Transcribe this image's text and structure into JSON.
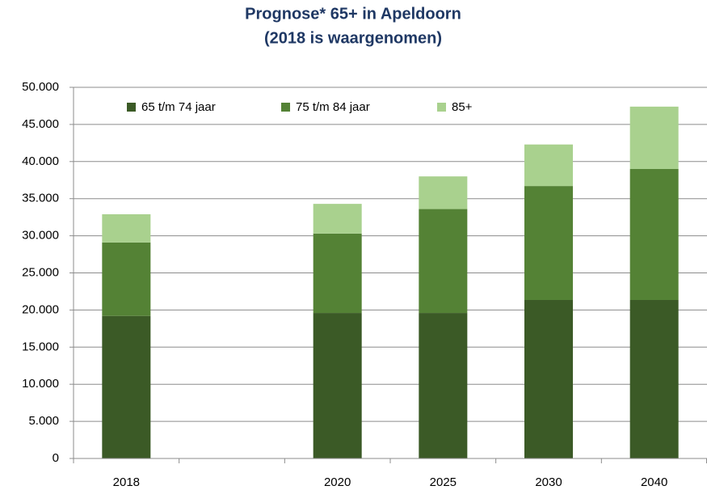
{
  "chart_data": {
    "type": "stacked-bar",
    "title": "Prognose* 65+ in Apeldoorn",
    "subtitle": "(2018 is waargenomen)",
    "categories": [
      "2018",
      null,
      "2020",
      "2025",
      "2030",
      "2040"
    ],
    "series": [
      {
        "name": "65 t/m 74 jaar",
        "color": "#3b5a26",
        "values": [
          19200,
          null,
          19600,
          19600,
          21350,
          21350
        ]
      },
      {
        "name": "75 t/m 84 jaar",
        "color": "#548235",
        "values": [
          9900,
          null,
          10700,
          14000,
          15350,
          17650
        ]
      },
      {
        "name": "85+",
        "color": "#a9d18e",
        "values": [
          3800,
          null,
          4000,
          4400,
          5600,
          8400
        ]
      }
    ],
    "ylim": [
      0,
      50000
    ],
    "yticks": [
      0,
      {
        "value": 5000,
        "label": "5.000"
      },
      {
        "value": 10000,
        "label": "10.000"
      },
      {
        "value": 15000,
        "label": "15.000"
      },
      {
        "value": 20000,
        "label": "20.000"
      },
      {
        "value": 25000,
        "label": "25.000"
      },
      {
        "value": 30000,
        "label": "30.000"
      },
      {
        "value": 35000,
        "label": "35.000"
      },
      {
        "value": 40000,
        "label": "40.000"
      },
      {
        "value": 45000,
        "label": "45.000"
      },
      {
        "value": 50000,
        "label": "50.000"
      }
    ],
    "grid": true,
    "legend": "top"
  }
}
